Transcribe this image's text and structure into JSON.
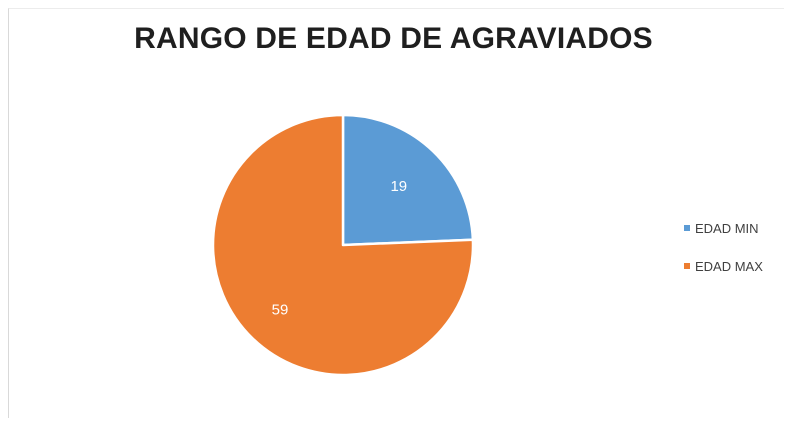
{
  "chart_data": {
    "type": "pie",
    "title": "RANGO DE EDAD DE AGRAVIADOS",
    "categories": [
      "EDAD MIN",
      "EDAD MAX"
    ],
    "values": [
      19,
      59
    ],
    "data_labels": [
      "19",
      "59"
    ],
    "colors": [
      "#5B9BD5",
      "#ED7D31"
    ],
    "legend_position": "right",
    "start_angle": "12 o'clock, clockwise"
  }
}
